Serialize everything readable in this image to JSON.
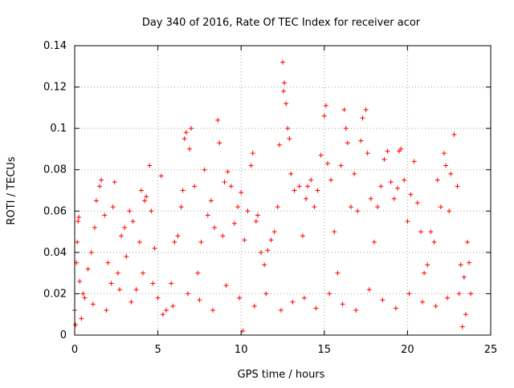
{
  "chart_data": {
    "type": "scatter",
    "title": "Day 340 of 2016, Rate Of TEC Index for receiver acor",
    "xlabel": "GPS time / hours",
    "ylabel": "ROTI / TECUs",
    "xlim": [
      0,
      25
    ],
    "ylim": [
      0,
      0.14
    ],
    "x_ticks": [
      {
        "value": 0,
        "label": "0"
      },
      {
        "value": 5,
        "label": "5"
      },
      {
        "value": 10,
        "label": "10"
      },
      {
        "value": 15,
        "label": "15"
      },
      {
        "value": 20,
        "label": "20"
      },
      {
        "value": 25,
        "label": "25"
      }
    ],
    "y_ticks": [
      {
        "value": 0,
        "label": "0"
      },
      {
        "value": 0.02,
        "label": "0.02"
      },
      {
        "value": 0.04,
        "label": "0.04"
      },
      {
        "value": 0.06,
        "label": "0.06"
      },
      {
        "value": 0.08,
        "label": "0.08"
      },
      {
        "value": 0.1,
        "label": "0.1"
      },
      {
        "value": 0.12,
        "label": "0.12"
      },
      {
        "value": 0.14,
        "label": "0.14"
      }
    ],
    "grid": true,
    "marker": "+",
    "series": [
      {
        "color": "#ff0000",
        "points": [
          [
            0.0,
            0.012
          ],
          [
            0.1,
            0.035
          ],
          [
            0.15,
            0.045
          ],
          [
            0.2,
            0.055
          ],
          [
            0.25,
            0.057
          ],
          [
            0.3,
            0.026
          ],
          [
            0.4,
            0.008
          ],
          [
            0.6,
            0.018
          ],
          [
            0.8,
            0.032
          ],
          [
            1.0,
            0.04
          ],
          [
            1.2,
            0.052
          ],
          [
            1.3,
            0.065
          ],
          [
            1.5,
            0.072
          ],
          [
            1.6,
            0.075
          ],
          [
            1.8,
            0.058
          ],
          [
            2.0,
            0.035
          ],
          [
            2.2,
            0.025
          ],
          [
            2.3,
            0.062
          ],
          [
            2.4,
            0.074
          ],
          [
            2.6,
            0.03
          ],
          [
            2.8,
            0.048
          ],
          [
            3.0,
            0.052
          ],
          [
            3.1,
            0.038
          ],
          [
            3.3,
            0.06
          ],
          [
            3.5,
            0.055
          ],
          [
            3.7,
            0.022
          ],
          [
            3.9,
            0.045
          ],
          [
            4.0,
            0.07
          ],
          [
            4.2,
            0.065
          ],
          [
            4.3,
            0.067
          ],
          [
            4.5,
            0.082
          ],
          [
            4.6,
            0.06
          ],
          [
            4.8,
            0.042
          ],
          [
            5.0,
            0.018
          ],
          [
            5.2,
            0.077
          ],
          [
            5.5,
            0.012
          ],
          [
            5.8,
            0.025
          ],
          [
            6.0,
            0.045
          ],
          [
            6.2,
            0.048
          ],
          [
            6.4,
            0.062
          ],
          [
            6.5,
            0.07
          ],
          [
            6.6,
            0.095
          ],
          [
            6.7,
            0.098
          ],
          [
            6.9,
            0.09
          ],
          [
            7.0,
            0.1
          ],
          [
            7.2,
            0.072
          ],
          [
            7.4,
            0.03
          ],
          [
            7.6,
            0.045
          ],
          [
            7.8,
            0.08
          ],
          [
            8.0,
            0.058
          ],
          [
            8.2,
            0.065
          ],
          [
            8.4,
            0.052
          ],
          [
            8.6,
            0.104
          ],
          [
            8.7,
            0.093
          ],
          [
            8.9,
            0.048
          ],
          [
            9.0,
            0.074
          ],
          [
            9.2,
            0.079
          ],
          [
            9.4,
            0.072
          ],
          [
            9.6,
            0.054
          ],
          [
            9.8,
            0.062
          ],
          [
            10.0,
            0.069
          ],
          [
            10.2,
            0.046
          ],
          [
            10.4,
            0.06
          ],
          [
            10.6,
            0.082
          ],
          [
            10.7,
            0.088
          ],
          [
            10.9,
            0.055
          ],
          [
            11.0,
            0.058
          ],
          [
            11.2,
            0.04
          ],
          [
            11.4,
            0.034
          ],
          [
            11.6,
            0.041
          ],
          [
            11.8,
            0.046
          ],
          [
            12.0,
            0.05
          ],
          [
            12.2,
            0.062
          ],
          [
            12.3,
            0.092
          ],
          [
            12.5,
            0.132
          ],
          [
            12.6,
            0.122
          ],
          [
            12.55,
            0.118
          ],
          [
            12.7,
            0.112
          ],
          [
            12.8,
            0.1
          ],
          [
            12.9,
            0.095
          ],
          [
            13.0,
            0.078
          ],
          [
            13.2,
            0.07
          ],
          [
            13.5,
            0.072
          ],
          [
            13.7,
            0.048
          ],
          [
            13.9,
            0.066
          ],
          [
            14.0,
            0.072
          ],
          [
            14.2,
            0.075
          ],
          [
            14.4,
            0.062
          ],
          [
            14.6,
            0.07
          ],
          [
            14.8,
            0.087
          ],
          [
            15.0,
            0.106
          ],
          [
            15.1,
            0.111
          ],
          [
            15.2,
            0.083
          ],
          [
            15.4,
            0.075
          ],
          [
            15.6,
            0.05
          ],
          [
            15.8,
            0.03
          ],
          [
            16.0,
            0.082
          ],
          [
            16.2,
            0.109
          ],
          [
            16.3,
            0.1
          ],
          [
            16.4,
            0.093
          ],
          [
            16.6,
            0.062
          ],
          [
            16.8,
            0.078
          ],
          [
            17.0,
            0.06
          ],
          [
            17.2,
            0.094
          ],
          [
            17.3,
            0.105
          ],
          [
            17.5,
            0.109
          ],
          [
            17.6,
            0.088
          ],
          [
            17.8,
            0.066
          ],
          [
            18.0,
            0.045
          ],
          [
            18.2,
            0.062
          ],
          [
            18.4,
            0.072
          ],
          [
            18.6,
            0.085
          ],
          [
            18.8,
            0.089
          ],
          [
            19.0,
            0.074
          ],
          [
            19.2,
            0.066
          ],
          [
            19.4,
            0.071
          ],
          [
            19.5,
            0.089
          ],
          [
            19.6,
            0.09
          ],
          [
            19.8,
            0.075
          ],
          [
            20.0,
            0.055
          ],
          [
            20.2,
            0.068
          ],
          [
            20.4,
            0.084
          ],
          [
            20.6,
            0.064
          ],
          [
            20.8,
            0.05
          ],
          [
            21.0,
            0.03
          ],
          [
            21.2,
            0.034
          ],
          [
            21.4,
            0.05
          ],
          [
            21.6,
            0.045
          ],
          [
            21.8,
            0.075
          ],
          [
            22.0,
            0.062
          ],
          [
            22.2,
            0.088
          ],
          [
            22.3,
            0.082
          ],
          [
            22.5,
            0.06
          ],
          [
            22.6,
            0.078
          ],
          [
            22.8,
            0.097
          ],
          [
            23.0,
            0.072
          ],
          [
            23.2,
            0.034
          ],
          [
            23.4,
            0.028
          ],
          [
            23.6,
            0.045
          ],
          [
            23.8,
            0.02
          ],
          [
            0.05,
            0.005
          ],
          [
            0.5,
            0.02
          ],
          [
            1.1,
            0.015
          ],
          [
            1.9,
            0.012
          ],
          [
            2.7,
            0.022
          ],
          [
            3.4,
            0.016
          ],
          [
            4.1,
            0.03
          ],
          [
            4.7,
            0.025
          ],
          [
            5.3,
            0.01
          ],
          [
            5.9,
            0.014
          ],
          [
            6.8,
            0.02
          ],
          [
            7.5,
            0.017
          ],
          [
            8.3,
            0.012
          ],
          [
            9.1,
            0.024
          ],
          [
            9.9,
            0.018
          ],
          [
            10.1,
            0.002
          ],
          [
            10.8,
            0.014
          ],
          [
            11.5,
            0.02
          ],
          [
            12.4,
            0.012
          ],
          [
            13.1,
            0.016
          ],
          [
            13.8,
            0.018
          ],
          [
            14.5,
            0.013
          ],
          [
            15.3,
            0.02
          ],
          [
            16.1,
            0.015
          ],
          [
            16.9,
            0.012
          ],
          [
            17.7,
            0.022
          ],
          [
            18.5,
            0.017
          ],
          [
            19.3,
            0.013
          ],
          [
            20.1,
            0.02
          ],
          [
            20.9,
            0.016
          ],
          [
            21.7,
            0.014
          ],
          [
            22.4,
            0.018
          ],
          [
            23.1,
            0.02
          ],
          [
            23.5,
            0.01
          ],
          [
            23.7,
            0.035
          ],
          [
            23.3,
            0.004
          ]
        ]
      }
    ]
  }
}
